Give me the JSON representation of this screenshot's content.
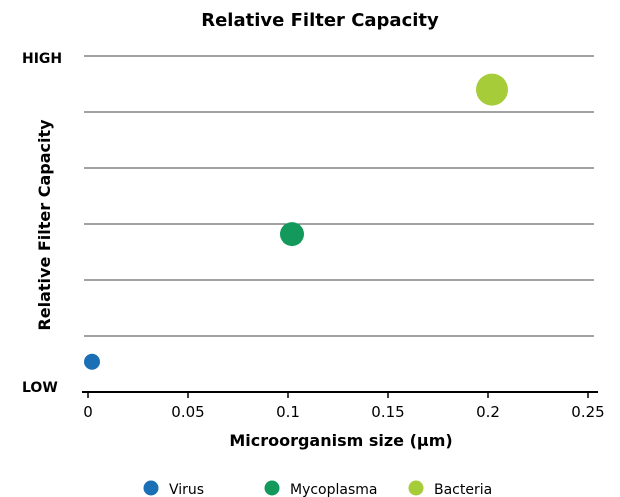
{
  "chart_data": {
    "type": "scatter",
    "title": "Relative Filter Capacity",
    "xlabel": "Microorganism size (µm)",
    "ylabel": "Relative Filter Capacity",
    "y_high_label": "HIGH",
    "y_low_label": "LOW",
    "xlim": [
      0,
      0.255
    ],
    "ylim": [
      0,
      1
    ],
    "x_ticks": [
      0,
      0.05,
      0.1,
      0.15,
      0.2,
      0.25
    ],
    "x_tick_labels": [
      "0",
      "0.05",
      "0.1",
      "0.15",
      "0.2",
      "0.25"
    ],
    "horizontal_grid": true,
    "legend_position": "bottom",
    "series": [
      {
        "name": "Virus",
        "x": [
          0.002
        ],
        "y": [
          0.09
        ],
        "color": "#1a6fb5",
        "marker_size": "small"
      },
      {
        "name": "Mycoplasma",
        "x": [
          0.102
        ],
        "y": [
          0.47
        ],
        "color": "#12995b",
        "marker_size": "medium"
      },
      {
        "name": "Bacteria",
        "x": [
          0.202
        ],
        "y": [
          0.9
        ],
        "color": "#a6cc3a",
        "marker_size": "large"
      }
    ]
  }
}
